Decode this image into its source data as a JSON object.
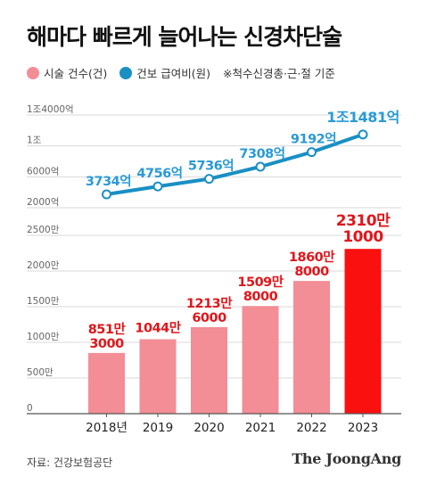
{
  "title": "해마다 빠르게 늘어나는 신경차단술",
  "legend": {
    "items": [
      {
        "label": "시술 건수(건)",
        "color": "#f38d96"
      },
      {
        "label": "건보 급여비(원)",
        "color": "#1a8fc4"
      }
    ],
    "note": "※척수신경총·근·절 기준"
  },
  "source": "자료: 건강보험공단",
  "brand": "The JoongAng",
  "colors": {
    "bar": "#f38d96",
    "bar_highlight": "#fb1010",
    "bar_label": "#e0161b",
    "line": "#1a8fc4",
    "line_label": "#2a9ad4",
    "axis_text": "#666666",
    "grid": "#d9d9d9"
  },
  "chart_data": [
    {
      "type": "line",
      "name": "건보 급여비(원)",
      "categories": [
        "2018년",
        "2019",
        "2020",
        "2021",
        "2022",
        "2023"
      ],
      "values": [
        3734,
        4756,
        5736,
        7308,
        9192,
        11481
      ],
      "unit": "억",
      "data_labels": [
        "3734억",
        "4756억",
        "5736억",
        "7308억",
        "9192억",
        "1조1481억"
      ],
      "yticks": [
        {
          "value": 2000,
          "label": "2000억"
        },
        {
          "value": 6000,
          "label": "6000억"
        },
        {
          "value": 10000,
          "label": "1조"
        },
        {
          "value": 14000,
          "label": "1조4000억"
        }
      ],
      "ylim": [
        2000,
        14000
      ]
    },
    {
      "type": "bar",
      "name": "시술 건수(건)",
      "categories": [
        "2018년",
        "2019",
        "2020",
        "2021",
        "2022",
        "2023"
      ],
      "values": [
        8513000,
        10440000,
        12136000,
        15098000,
        18608000,
        23101000
      ],
      "data_labels": [
        [
          "851만",
          "3000"
        ],
        [
          "1044만",
          ""
        ],
        [
          "1213만",
          "6000"
        ],
        [
          "1509만",
          "8000"
        ],
        [
          "1860만",
          "8000"
        ],
        [
          "2310만",
          "1000"
        ]
      ],
      "highlight_index": 5,
      "yticks": [
        {
          "value": 0,
          "label": "0"
        },
        {
          "value": 5000000,
          "label": "500만"
        },
        {
          "value": 10000000,
          "label": "1000만"
        },
        {
          "value": 15000000,
          "label": "1500만"
        },
        {
          "value": 20000000,
          "label": "2000만"
        },
        {
          "value": 25000000,
          "label": "2500만"
        }
      ],
      "ylim": [
        0,
        25000000
      ]
    }
  ]
}
